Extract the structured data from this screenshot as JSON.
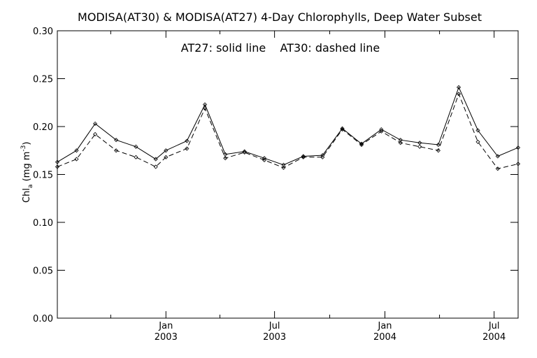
{
  "chart_data": {
    "type": "line",
    "title": "MODISA(AT30) & MODISA(AT27) 4-Day Chlorophylls, Deep Water Subset",
    "annotation": "AT27: solid line    AT30: dashed line",
    "ylabel_main": "Chl",
    "ylabel_sub": "a",
    "ylabel_unit_open": " (mg m",
    "ylabel_unit_sup": "-3",
    "ylabel_unit_close": ")",
    "ylim": [
      0.0,
      0.3
    ],
    "yticks": [
      0.0,
      0.05,
      0.1,
      0.15,
      0.2,
      0.25,
      0.3
    ],
    "ytick_labels": [
      "0.00",
      "0.05",
      "0.10",
      "0.15",
      "0.20",
      "0.25",
      "0.30"
    ],
    "xlim": [
      "2002-07-04",
      "2004-08-10"
    ],
    "xticks_minor": [
      "2002-10-01",
      "2003-04-01",
      "2003-10-01",
      "2004-04-01"
    ],
    "xticks_major": [
      {
        "date": "2003-01-01",
        "month": "Jan",
        "year": "2003"
      },
      {
        "date": "2003-07-01",
        "month": "Jul",
        "year": "2003"
      },
      {
        "date": "2004-01-01",
        "month": "Jan",
        "year": "2004"
      },
      {
        "date": "2004-07-01",
        "month": "Jul",
        "year": "2004"
      }
    ],
    "grid": false,
    "x": [
      "2002-07-04",
      "2002-08-05",
      "2002-09-05",
      "2002-10-10",
      "2002-11-12",
      "2002-12-15",
      "2003-01-01",
      "2003-02-05",
      "2003-03-07",
      "2003-04-10",
      "2003-05-12",
      "2003-06-14",
      "2003-07-16",
      "2003-08-18",
      "2003-09-19",
      "2003-10-22",
      "2003-11-23",
      "2003-12-26",
      "2004-01-27",
      "2004-02-28",
      "2004-03-30",
      "2004-05-03",
      "2004-06-04",
      "2004-07-07",
      "2004-08-10"
    ],
    "series": [
      {
        "name": "AT27",
        "line_style": "solid",
        "values": [
          0.163,
          0.175,
          0.203,
          0.186,
          0.179,
          0.166,
          0.175,
          0.185,
          0.223,
          0.171,
          0.174,
          0.167,
          0.16,
          0.169,
          0.17,
          0.198,
          0.182,
          0.197,
          0.186,
          0.183,
          0.181,
          0.241,
          0.196,
          0.169,
          0.178
        ]
      },
      {
        "name": "AT30",
        "line_style": "dashed",
        "values": [
          0.158,
          0.166,
          0.192,
          0.175,
          0.168,
          0.158,
          0.168,
          0.177,
          0.219,
          0.167,
          0.173,
          0.165,
          0.157,
          0.168,
          0.168,
          0.197,
          0.181,
          0.195,
          0.183,
          0.179,
          0.175,
          0.234,
          0.184,
          0.156,
          0.161
        ]
      }
    ]
  }
}
